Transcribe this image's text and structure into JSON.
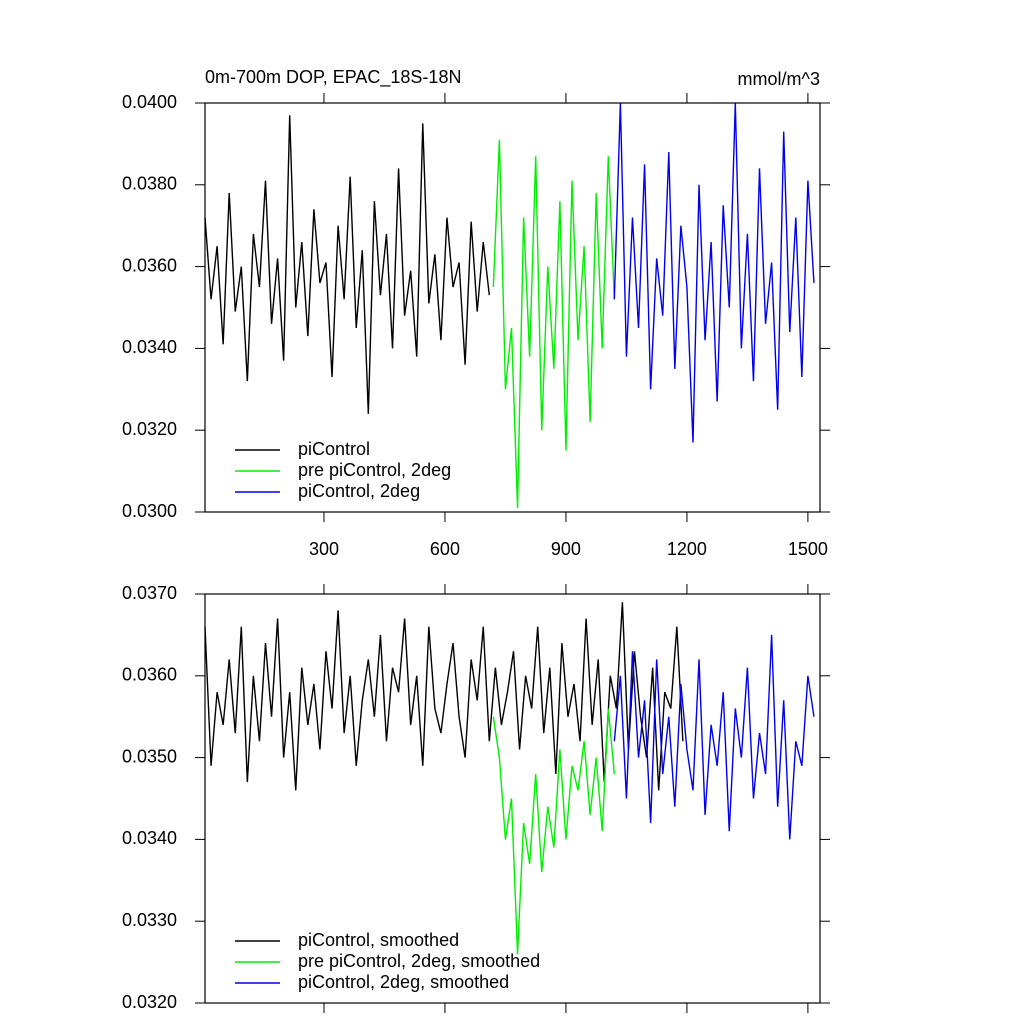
{
  "chart_data": [
    {
      "type": "line",
      "title": "0m-700m DOP, EPAC_18S-18N",
      "units": "mmol/m^3",
      "xlim": [
        5,
        1530
      ],
      "xticks": [
        300,
        600,
        900,
        1200,
        1500
      ],
      "show_xtick_labels": true,
      "ylim": [
        0.03,
        0.04
      ],
      "yticks": [
        {
          "value": 0.03,
          "label": "0.0300"
        },
        {
          "value": 0.032,
          "label": "0.0320"
        },
        {
          "value": 0.034,
          "label": "0.0340"
        },
        {
          "value": 0.036,
          "label": "0.0360"
        },
        {
          "value": 0.038,
          "label": "0.0380"
        },
        {
          "value": 0.04,
          "label": "0.0400"
        }
      ],
      "legend": "lower-left",
      "series": [
        {
          "name": "piControl",
          "color": "#000000",
          "x": [
            5,
            20,
            35,
            50,
            65,
            80,
            95,
            110,
            125,
            140,
            155,
            170,
            185,
            200,
            215,
            230,
            245,
            260,
            275,
            290,
            305,
            320,
            335,
            350,
            365,
            380,
            395,
            410,
            425,
            440,
            455,
            470,
            485,
            500,
            515,
            530,
            545,
            560,
            575,
            590,
            605,
            620,
            635,
            650,
            665,
            680,
            695,
            710
          ],
          "values": [
            0.0372,
            0.0352,
            0.0365,
            0.0341,
            0.0378,
            0.0349,
            0.036,
            0.0332,
            0.0368,
            0.0355,
            0.0381,
            0.0346,
            0.0362,
            0.0337,
            0.0397,
            0.035,
            0.0366,
            0.0343,
            0.0374,
            0.0356,
            0.0361,
            0.0333,
            0.037,
            0.0352,
            0.0382,
            0.0345,
            0.0364,
            0.0324,
            0.0376,
            0.0353,
            0.0368,
            0.034,
            0.0384,
            0.0348,
            0.0359,
            0.0338,
            0.0395,
            0.0351,
            0.0363,
            0.0342,
            0.0372,
            0.0355,
            0.0361,
            0.0336,
            0.0371,
            0.0349,
            0.0366,
            0.0353
          ]
        },
        {
          "name": "pre piControl, 2deg",
          "color": "#00ee00",
          "x": [
            720,
            735,
            750,
            765,
            780,
            795,
            810,
            825,
            840,
            855,
            870,
            885,
            900,
            915,
            930,
            945,
            960,
            975,
            990,
            1005,
            1020
          ],
          "values": [
            0.0355,
            0.0391,
            0.033,
            0.0345,
            0.0301,
            0.0372,
            0.0338,
            0.0387,
            0.032,
            0.036,
            0.0335,
            0.0376,
            0.0315,
            0.0381,
            0.0342,
            0.0365,
            0.0322,
            0.0378,
            0.034,
            0.0387,
            0.0352
          ]
        },
        {
          "name": "piControl, 2deg",
          "color": "#0000ee",
          "x": [
            1020,
            1035,
            1050,
            1065,
            1080,
            1095,
            1110,
            1125,
            1140,
            1155,
            1170,
            1185,
            1200,
            1215,
            1230,
            1245,
            1260,
            1275,
            1290,
            1305,
            1320,
            1335,
            1350,
            1365,
            1380,
            1395,
            1410,
            1425,
            1440,
            1455,
            1470,
            1485,
            1500,
            1515
          ],
          "values": [
            0.0352,
            0.04,
            0.0338,
            0.0372,
            0.0345,
            0.0385,
            0.033,
            0.0362,
            0.0348,
            0.0388,
            0.0335,
            0.037,
            0.0355,
            0.0317,
            0.038,
            0.0342,
            0.0366,
            0.0327,
            0.0375,
            0.035,
            0.04,
            0.034,
            0.0368,
            0.0332,
            0.0384,
            0.0346,
            0.0361,
            0.0325,
            0.0393,
            0.0344,
            0.0372,
            0.0333,
            0.0381,
            0.0356
          ]
        }
      ]
    },
    {
      "type": "line",
      "xlim": [
        5,
        1530
      ],
      "xticks": [
        300,
        600,
        900,
        1200,
        1500
      ],
      "show_xtick_labels": false,
      "ylim": [
        0.032,
        0.037
      ],
      "yticks": [
        {
          "value": 0.032,
          "label": "0.0320"
        },
        {
          "value": 0.033,
          "label": "0.0330"
        },
        {
          "value": 0.034,
          "label": "0.0340"
        },
        {
          "value": 0.035,
          "label": "0.0350"
        },
        {
          "value": 0.036,
          "label": "0.0360"
        },
        {
          "value": 0.037,
          "label": "0.0370"
        }
      ],
      "legend": "lower-left",
      "series": [
        {
          "name": "piControl, smoothed",
          "color": "#000000",
          "x": [
            5,
            20,
            35,
            50,
            65,
            80,
            95,
            110,
            125,
            140,
            155,
            170,
            185,
            200,
            215,
            230,
            245,
            260,
            275,
            290,
            305,
            320,
            335,
            350,
            365,
            380,
            395,
            410,
            425,
            440,
            455,
            470,
            485,
            500,
            515,
            530,
            545,
            560,
            575,
            590,
            605,
            620,
            635,
            650,
            665,
            680,
            695,
            710,
            725,
            740,
            755,
            770,
            785,
            800,
            815,
            830,
            845,
            860,
            875,
            890,
            905,
            920,
            935,
            950,
            965,
            980,
            995,
            1010,
            1025,
            1040,
            1055,
            1070,
            1085,
            1100,
            1115,
            1130,
            1145,
            1160,
            1175,
            1190
          ],
          "values": [
            0.0366,
            0.0349,
            0.0358,
            0.0354,
            0.0362,
            0.0353,
            0.0366,
            0.0347,
            0.036,
            0.0352,
            0.0364,
            0.0355,
            0.0367,
            0.035,
            0.0358,
            0.0346,
            0.0361,
            0.0354,
            0.0359,
            0.0351,
            0.0363,
            0.0356,
            0.0368,
            0.0353,
            0.036,
            0.0349,
            0.0357,
            0.0362,
            0.0355,
            0.0365,
            0.0352,
            0.0361,
            0.0358,
            0.0367,
            0.0354,
            0.036,
            0.0349,
            0.0366,
            0.0356,
            0.0353,
            0.0359,
            0.0364,
            0.0355,
            0.035,
            0.0362,
            0.0357,
            0.0366,
            0.0352,
            0.0361,
            0.0354,
            0.0358,
            0.0363,
            0.0351,
            0.036,
            0.0356,
            0.0366,
            0.0353,
            0.0361,
            0.0348,
            0.0364,
            0.0355,
            0.0359,
            0.0352,
            0.0367,
            0.0354,
            0.0362,
            0.0347,
            0.036,
            0.0356,
            0.0369,
            0.0351,
            0.0363,
            0.0355,
            0.035,
            0.0361,
            0.0346,
            0.0358,
            0.0356,
            0.0366,
            0.0352
          ]
        },
        {
          "name": "pre piControl, 2deg, smoothed",
          "color": "#00ee00",
          "x": [
            720,
            735,
            750,
            765,
            780,
            795,
            810,
            825,
            840,
            855,
            870,
            885,
            900,
            915,
            930,
            945,
            960,
            975,
            990,
            1005,
            1020
          ],
          "values": [
            0.0355,
            0.035,
            0.034,
            0.0345,
            0.0326,
            0.0342,
            0.0337,
            0.0348,
            0.0336,
            0.0344,
            0.0339,
            0.0351,
            0.034,
            0.0349,
            0.0346,
            0.0352,
            0.0343,
            0.035,
            0.0341,
            0.0356,
            0.0348
          ]
        },
        {
          "name": "piControl, 2deg, smoothed",
          "color": "#0000ee",
          "x": [
            1020,
            1035,
            1050,
            1065,
            1080,
            1095,
            1110,
            1125,
            1140,
            1155,
            1170,
            1185,
            1200,
            1215,
            1230,
            1245,
            1260,
            1275,
            1290,
            1305,
            1320,
            1335,
            1350,
            1365,
            1380,
            1395,
            1410,
            1425,
            1440,
            1455,
            1470,
            1485,
            1500,
            1515
          ],
          "values": [
            0.0352,
            0.036,
            0.0345,
            0.0363,
            0.035,
            0.0357,
            0.0342,
            0.0362,
            0.0348,
            0.0355,
            0.0344,
            0.0359,
            0.0351,
            0.0346,
            0.0362,
            0.0343,
            0.0354,
            0.0349,
            0.0358,
            0.0341,
            0.0356,
            0.035,
            0.0361,
            0.0345,
            0.0353,
            0.0348,
            0.0365,
            0.0344,
            0.0357,
            0.034,
            0.0352,
            0.0349,
            0.036,
            0.0355
          ]
        }
      ]
    }
  ]
}
